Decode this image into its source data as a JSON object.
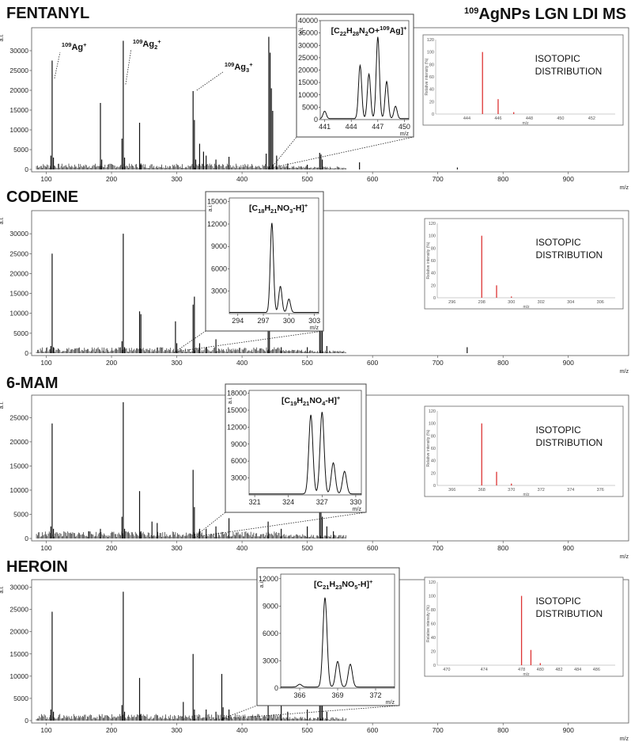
{
  "figure_title": "109AgNPs LGN LDI MS",
  "figure_title_parts": {
    "sup": "109",
    "main": "AgNPs LGN LDI MS"
  },
  "chart_data": [
    {
      "type": "line",
      "title": "FENTANYL",
      "xlabel": "m/z",
      "ylabel": "a.i.",
      "xlim": [
        80,
        990
      ],
      "ylim": [
        0,
        35000
      ],
      "xticks": [
        100,
        200,
        300,
        400,
        500,
        600,
        700,
        800,
        900
      ],
      "yticks": [
        0,
        5000,
        10000,
        15000,
        20000,
        25000,
        30000
      ],
      "peaks": [
        [
          107,
          3500
        ],
        [
          109,
          27500
        ],
        [
          111,
          3000
        ],
        [
          183,
          16800
        ],
        [
          185,
          2500
        ],
        [
          216,
          7800
        ],
        [
          218,
          32500
        ],
        [
          220,
          3000
        ],
        [
          243,
          11800
        ],
        [
          245,
          1500
        ],
        [
          325,
          19800
        ],
        [
          327,
          12500
        ],
        [
          329,
          2500
        ],
        [
          335,
          6500
        ],
        [
          341,
          4500
        ],
        [
          345,
          3500
        ],
        [
          360,
          2500
        ],
        [
          380,
          3200
        ],
        [
          437,
          4000
        ],
        [
          441,
          33500
        ],
        [
          443,
          29500
        ],
        [
          445,
          20500
        ],
        [
          447,
          14800
        ],
        [
          453,
          3500
        ],
        [
          470,
          1500
        ],
        [
          500,
          1200
        ],
        [
          519,
          4200
        ],
        [
          521,
          3800
        ],
        [
          523,
          2500
        ],
        [
          580,
          1800
        ],
        [
          730,
          500
        ]
      ],
      "annotations": [
        {
          "text": "109Ag+",
          "sup": "109",
          "base": "Ag",
          "sub": "",
          "charge": "+",
          "mz": 109
        },
        {
          "text": "109Ag2+",
          "sup": "109",
          "base": "Ag",
          "sub": "2",
          "charge": "+",
          "mz": 218
        },
        {
          "text": "109Ag3+",
          "sup": "109",
          "base": "Ag",
          "sub": "3",
          "charge": "+",
          "mz": 327
        }
      ],
      "inset": {
        "label": "[C22H28N2O+109Ag]+",
        "ylabel": "a.i.",
        "xlabel": "m/z",
        "xlim": [
          440.5,
          450.5
        ],
        "ylim": [
          0,
          40000
        ],
        "xticks": [
          441,
          444,
          447,
          450
        ],
        "yticks": [
          0,
          5000,
          10000,
          15000,
          20000,
          25000,
          30000,
          35000,
          40000
        ],
        "peaks": [
          [
            441,
            3000
          ],
          [
            445,
            21500
          ],
          [
            446,
            18000
          ],
          [
            447,
            33000
          ],
          [
            448,
            15000
          ],
          [
            449,
            5000
          ]
        ],
        "zoom_mz": 445
      },
      "isotopic": {
        "label": "ISOTOPIC DISTRIBUTION",
        "ylabel": "Relative intensity (%)",
        "xlabel": "m/z",
        "xlim": [
          442,
          453.5
        ],
        "xticks": [
          444,
          446,
          448,
          450,
          452
        ],
        "ylim": [
          0,
          120
        ],
        "yticks": [
          0,
          20,
          40,
          60,
          80,
          100,
          120
        ],
        "peaks": [
          [
            445,
            100
          ],
          [
            446,
            24
          ],
          [
            447,
            3
          ]
        ]
      }
    },
    {
      "type": "line",
      "title": "CODEINE",
      "xlabel": "m/z",
      "ylabel": "a.i.",
      "xlim": [
        80,
        990
      ],
      "ylim": [
        0,
        35000
      ],
      "xticks": [
        100,
        200,
        300,
        400,
        500,
        600,
        700,
        800,
        900
      ],
      "yticks": [
        0,
        5000,
        10000,
        15000,
        20000,
        25000,
        30000
      ],
      "peaks": [
        [
          107,
          1800
        ],
        [
          109,
          25000
        ],
        [
          111,
          1500
        ],
        [
          216,
          3000
        ],
        [
          218,
          30000
        ],
        [
          220,
          1500
        ],
        [
          243,
          10500
        ],
        [
          245,
          9800
        ],
        [
          298,
          8000
        ],
        [
          300,
          2500
        ],
        [
          325,
          12200
        ],
        [
          327,
          14200
        ],
        [
          335,
          2500
        ],
        [
          345,
          1500
        ],
        [
          360,
          3500
        ],
        [
          440,
          8300
        ],
        [
          442,
          9800
        ],
        [
          460,
          1500
        ],
        [
          500,
          1500
        ],
        [
          519,
          6500
        ],
        [
          521,
          11500
        ],
        [
          523,
          9000
        ],
        [
          530,
          1800
        ],
        [
          745,
          1500
        ]
      ],
      "annotations": [],
      "inset": {
        "label": "[C18H21NO3-H]+",
        "ylabel": "a.i.",
        "xlabel": "m/z",
        "xlim": [
          293,
          303.5
        ],
        "ylim": [
          0,
          15500
        ],
        "xticks": [
          294,
          297,
          300,
          303
        ],
        "yticks": [
          3000,
          6000,
          9000,
          12000,
          15000
        ],
        "peaks": [
          [
            298,
            12000
          ],
          [
            299,
            3500
          ],
          [
            300,
            1800
          ]
        ],
        "zoom_mz": 298
      },
      "isotopic": {
        "label": "ISOTOPIC DISTRIBUTION",
        "ylabel": "Relative intensity (%)",
        "xlabel": "m/z",
        "xlim": [
          295,
          307
        ],
        "xticks": [
          296,
          298,
          300,
          302,
          304,
          306
        ],
        "ylim": [
          0,
          120
        ],
        "yticks": [
          0,
          20,
          40,
          60,
          80,
          100,
          120
        ],
        "peaks": [
          [
            298,
            100
          ],
          [
            299,
            20
          ],
          [
            300,
            2
          ]
        ]
      }
    },
    {
      "type": "line",
      "title": "6-MAM",
      "xlabel": "m/z",
      "ylabel": "a.i.",
      "xlim": [
        80,
        990
      ],
      "ylim": [
        0,
        29000
      ],
      "xticks": [
        100,
        200,
        300,
        400,
        500,
        600,
        700,
        800,
        900
      ],
      "yticks": [
        0,
        5000,
        10000,
        15000,
        20000,
        25000
      ],
      "peaks": [
        [
          107,
          2500
        ],
        [
          109,
          23800
        ],
        [
          111,
          2000
        ],
        [
          165,
          1500
        ],
        [
          183,
          2000
        ],
        [
          216,
          4500
        ],
        [
          218,
          28200
        ],
        [
          220,
          2000
        ],
        [
          243,
          9800
        ],
        [
          245,
          1500
        ],
        [
          262,
          3500
        ],
        [
          270,
          3200
        ],
        [
          325,
          14200
        ],
        [
          327,
          6500
        ],
        [
          335,
          2000
        ],
        [
          345,
          2000
        ],
        [
          360,
          2500
        ],
        [
          380,
          4200
        ],
        [
          440,
          3500
        ],
        [
          460,
          2000
        ],
        [
          500,
          2500
        ],
        [
          519,
          5500
        ],
        [
          521,
          7500
        ],
        [
          523,
          4500
        ],
        [
          530,
          2500
        ],
        [
          540,
          1500
        ]
      ],
      "annotations": [],
      "inset": {
        "label": "[C19H21NO4-H]+",
        "ylabel": "a.i.",
        "xlabel": "m/z",
        "xlim": [
          320.5,
          330.5
        ],
        "ylim": [
          0,
          18500
        ],
        "xticks": [
          321,
          324,
          327,
          330
        ],
        "yticks": [
          3000,
          6000,
          9000,
          12000,
          15000,
          18000
        ],
        "peaks": [
          [
            326,
            14000
          ],
          [
            327,
            14500
          ],
          [
            328,
            5500
          ],
          [
            329,
            4000
          ]
        ],
        "zoom_mz": 327
      },
      "isotopic": {
        "label": "ISOTOPIC DISTRIBUTION",
        "ylabel": "Relative intensity (%)",
        "xlabel": "m/z",
        "xlim": [
          365,
          377
        ],
        "xticks": [
          366,
          368,
          370,
          372,
          374,
          376
        ],
        "ylim": [
          0,
          120
        ],
        "yticks": [
          0,
          20,
          40,
          60,
          80,
          100,
          120
        ],
        "peaks": [
          [
            368,
            100
          ],
          [
            369,
            22
          ],
          [
            370,
            3
          ]
        ]
      }
    },
    {
      "type": "line",
      "title": "HEROIN",
      "xlabel": "m/z",
      "ylabel": "a.i.",
      "xlim": [
        80,
        990
      ],
      "ylim": [
        0,
        31000
      ],
      "xticks": [
        100,
        200,
        300,
        400,
        500,
        600,
        700,
        800,
        900
      ],
      "yticks": [
        0,
        5000,
        10000,
        15000,
        20000,
        25000,
        30000
      ],
      "peaks": [
        [
          107,
          2500
        ],
        [
          109,
          24500
        ],
        [
          111,
          2000
        ],
        [
          216,
          3500
        ],
        [
          218,
          29000
        ],
        [
          220,
          2000
        ],
        [
          243,
          9600
        ],
        [
          245,
          1500
        ],
        [
          310,
          4200
        ],
        [
          325,
          15000
        ],
        [
          327,
          2500
        ],
        [
          345,
          2500
        ],
        [
          360,
          2000
        ],
        [
          369,
          10500
        ],
        [
          371,
          3000
        ],
        [
          380,
          2500
        ],
        [
          440,
          4500
        ],
        [
          460,
          4200
        ],
        [
          470,
          2000
        ],
        [
          500,
          2500
        ],
        [
          519,
          6500
        ],
        [
          521,
          8500
        ],
        [
          523,
          6500
        ],
        [
          530,
          2000
        ]
      ],
      "annotations": [],
      "inset": {
        "label": "[C21H23NO5-H]+",
        "ylabel": "a.i.",
        "xlabel": "m/z",
        "xlim": [
          364.5,
          373.5
        ],
        "ylim": [
          0,
          12500
        ],
        "xticks": [
          366,
          369,
          372
        ],
        "yticks": [
          0,
          3000,
          6000,
          9000,
          12000
        ],
        "peaks": [
          [
            366,
            300
          ],
          [
            368,
            9800
          ],
          [
            369,
            2800
          ],
          [
            370,
            2500
          ]
        ],
        "zoom_mz": 368
      },
      "isotopic": {
        "label": "ISOTOPIC DISTRIBUTION",
        "ylabel": "Relative intensity (%)",
        "xlabel": "m/z",
        "xlim": [
          469,
          488
        ],
        "xticks": [
          470,
          474,
          478,
          480,
          482,
          484,
          486
        ],
        "ylim": [
          0,
          120
        ],
        "yticks": [
          0,
          20,
          40,
          60,
          80,
          100,
          120
        ],
        "peaks": [
          [
            478,
            100
          ],
          [
            479,
            22
          ],
          [
            480,
            3
          ]
        ]
      }
    }
  ]
}
